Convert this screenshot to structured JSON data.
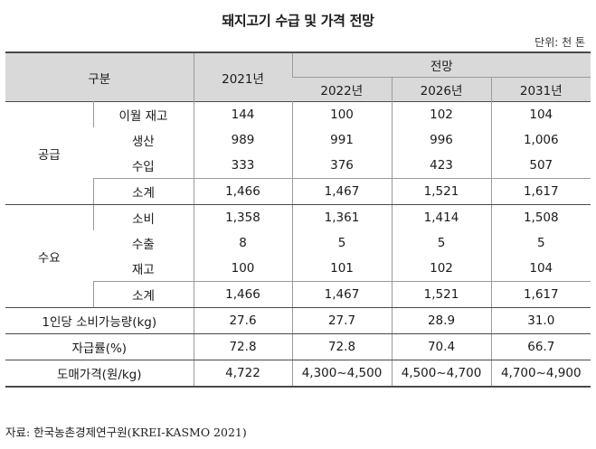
{
  "title": "돼지고기 수급 및 가격 전망",
  "unit": "단위: 천 톤",
  "header": {
    "category": "구분",
    "year_actual": "2021년",
    "forecast": "전망",
    "years_forecast": [
      "2022년",
      "2026년",
      "2031년"
    ]
  },
  "supply": {
    "group": "공급",
    "rows": [
      {
        "label": "이월 재고",
        "values": [
          "144",
          "100",
          "102",
          "104"
        ]
      },
      {
        "label": "생산",
        "values": [
          "989",
          "991",
          "996",
          "1,006"
        ]
      },
      {
        "label": "수입",
        "values": [
          "333",
          "376",
          "423",
          "507"
        ]
      },
      {
        "label": "소계",
        "values": [
          "1,466",
          "1,467",
          "1,521",
          "1,617"
        ]
      }
    ]
  },
  "demand": {
    "group": "수요",
    "rows": [
      {
        "label": "소비",
        "values": [
          "1,358",
          "1,361",
          "1,414",
          "1,508"
        ]
      },
      {
        "label": "수출",
        "values": [
          "8",
          "5",
          "5",
          "5"
        ]
      },
      {
        "label": "재고",
        "values": [
          "100",
          "101",
          "102",
          "104"
        ]
      },
      {
        "label": "소계",
        "values": [
          "1,466",
          "1,467",
          "1,521",
          "1,617"
        ]
      }
    ]
  },
  "extra_rows": [
    {
      "label": "1인당 소비가능량(kg)",
      "values": [
        "27.6",
        "27.7",
        "28.9",
        "31.0"
      ]
    },
    {
      "label": "자급률(%)",
      "values": [
        "72.8",
        "72.8",
        "70.4",
        "66.7"
      ]
    },
    {
      "label": "도매가격(원/kg)",
      "values": [
        "4,722",
        "4,300~4,500",
        "4,500~4,700",
        "4,700~4,900"
      ]
    }
  ],
  "source": "자료: 한국농촌경제연구원(KREI-KASMO 2021)"
}
